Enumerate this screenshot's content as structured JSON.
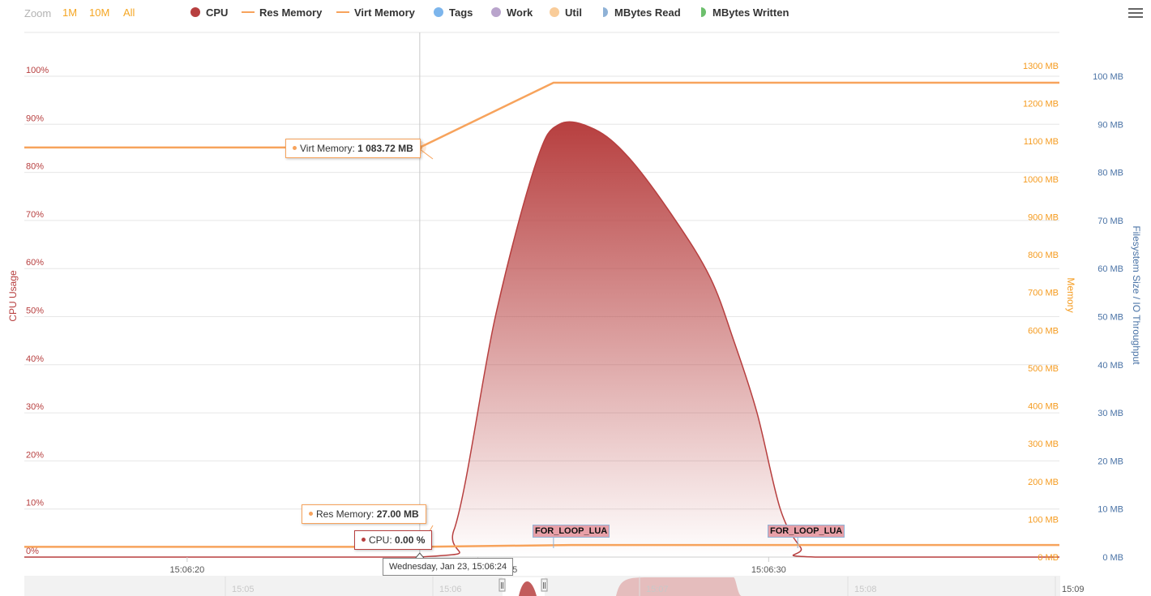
{
  "toolbar": {
    "zoom_label": "Zoom",
    "zoom_buttons": [
      "1M",
      "10M",
      "All"
    ],
    "legend": [
      {
        "label": "CPU",
        "color": "#b73f3f",
        "symbol": "dot"
      },
      {
        "label": "Res Memory",
        "color": "#f7a35c",
        "symbol": "line"
      },
      {
        "label": "Virt Memory",
        "color": "#f7a35c",
        "symbol": "line"
      },
      {
        "label": "Tags",
        "color": "#7cb5ec",
        "symbol": "dot"
      },
      {
        "label": "Work",
        "color": "#b9a4cc",
        "symbol": "dot"
      },
      {
        "label": "Util",
        "color": "#f9cc99",
        "symbol": "dot"
      },
      {
        "label": "MBytes Read",
        "color": "#8fb2d6",
        "symbol": "half"
      },
      {
        "label": "MBytes Written",
        "color": "#6cbf6c",
        "symbol": "half"
      }
    ]
  },
  "chart_data": {
    "type": "line",
    "axes": {
      "cpu": {
        "title": "CPU Usage",
        "ticks": [
          "0%",
          "10%",
          "20%",
          "30%",
          "40%",
          "50%",
          "60%",
          "70%",
          "80%",
          "90%",
          "100%"
        ],
        "range": [
          0,
          100
        ],
        "color": "#b73f3f"
      },
      "memory": {
        "title": "Memory",
        "ticks": [
          "0 MB",
          "100 MB",
          "200 MB",
          "300 MB",
          "400 MB",
          "500 MB",
          "600 MB",
          "700 MB",
          "800 MB",
          "900 MB",
          "1000 MB",
          "1100 MB",
          "1200 MB",
          "1300 MB"
        ],
        "range": [
          0,
          1300
        ],
        "color": "#f59b1f"
      },
      "filesystem": {
        "title": "Filesystem Size / IO Throughput",
        "ticks": [
          "0 MB",
          "10 MB",
          "20 MB",
          "30 MB",
          "40 MB",
          "50 MB",
          "60 MB",
          "70 MB",
          "80 MB",
          "90 MB",
          "100 MB"
        ],
        "range": [
          0,
          100
        ],
        "color": "#4a73a6"
      },
      "x": {
        "ticks": [
          {
            "label": "15:06:20",
            "t": 0
          },
          {
            "label": "15:06:25",
            "t": 5
          },
          {
            "label": "15:06:30",
            "t": 10
          }
        ],
        "range": [
          -2.8,
          15.0
        ]
      }
    },
    "series": [
      {
        "name": "CPU",
        "color": "#b73f3f",
        "axis": "cpu",
        "points": [
          [
            -2.8,
            0
          ],
          [
            4.0,
            0
          ],
          [
            4.6,
            6
          ],
          [
            5.3,
            50
          ],
          [
            6.0,
            82
          ],
          [
            6.4,
            90
          ],
          [
            7.0,
            89
          ],
          [
            7.6,
            83
          ],
          [
            8.4,
            70
          ],
          [
            9.0,
            58
          ],
          [
            9.4,
            45
          ],
          [
            9.8,
            30
          ],
          [
            10.2,
            10
          ],
          [
            10.55,
            2
          ],
          [
            10.8,
            0
          ],
          [
            15.0,
            0
          ]
        ]
      },
      {
        "name": "Res Memory",
        "color": "#f7a35c",
        "axis": "memory",
        "points": [
          [
            -2.8,
            27
          ],
          [
            4.0,
            27
          ],
          [
            6.6,
            32
          ],
          [
            15.0,
            32
          ]
        ]
      },
      {
        "name": "Virt Memory",
        "color": "#f7a35c",
        "axis": "memory",
        "points": [
          [
            -2.8,
            1083.72
          ],
          [
            4.0,
            1083.72
          ],
          [
            6.3,
            1255
          ],
          [
            15.0,
            1255
          ]
        ]
      }
    ],
    "tags": [
      {
        "label": "FOR_LOOP_LUA",
        "t": 6.3
      },
      {
        "label": "FOR_LOOP_LUA",
        "t": 10.5
      }
    ],
    "hover_t": 4.0,
    "tooltips": {
      "virt": {
        "name": "Virt Memory",
        "value": "1 083.72 MB"
      },
      "res": {
        "name": "Res Memory",
        "value": "27.00 MB"
      },
      "cpu": {
        "name": "CPU",
        "value": "0.00 %"
      },
      "time": "Wednesday, Jan 23, 15:06:24",
      "x_partial": "25"
    },
    "navigator": {
      "ticks": [
        "15:05",
        "15:06",
        "15:07",
        "15:08",
        "15:09"
      ]
    }
  }
}
